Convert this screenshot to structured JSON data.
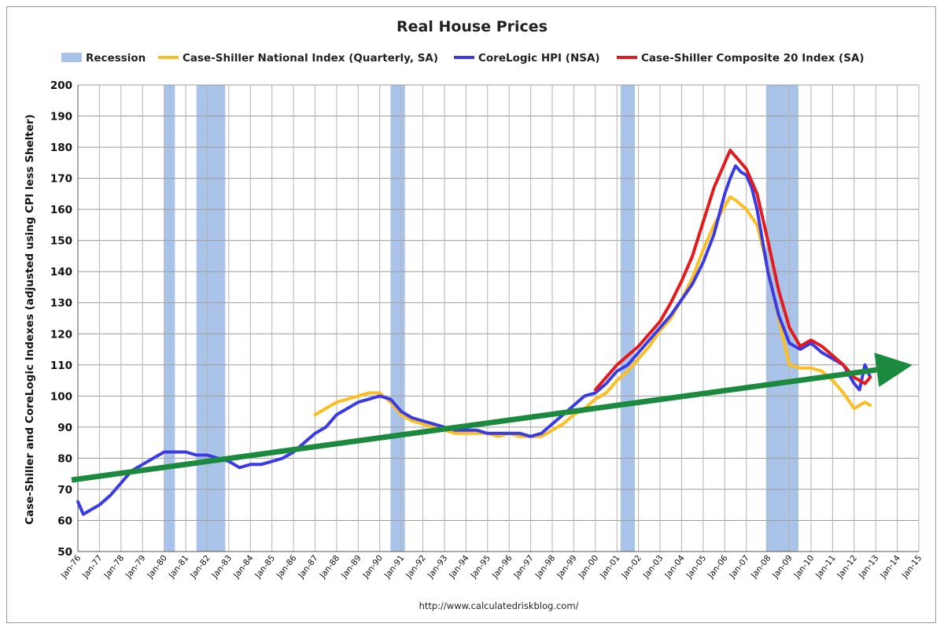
{
  "chart_data": {
    "type": "line",
    "title": "Real House Prices",
    "ylabel": "Case-Shiller and CoreLogic Indexes (adjusted using CPI less Shelter)",
    "xlabel": "",
    "source": "http://www.calculatedriskblog.com/",
    "ylim": [
      50,
      200
    ],
    "yticks": [
      50,
      60,
      70,
      80,
      90,
      100,
      110,
      120,
      130,
      140,
      150,
      160,
      170,
      180,
      190,
      200
    ],
    "xlim": [
      "Jan-76",
      "Jan-15"
    ],
    "xtick_labels": [
      "Jan-76",
      "Jan-77",
      "Jan-78",
      "Jan-79",
      "Jan-80",
      "Jan-81",
      "Jan-82",
      "Jan-83",
      "Jan-84",
      "Jan-85",
      "Jan-86",
      "Jan-87",
      "Jan-88",
      "Jan-89",
      "Jan-90",
      "Jan-91",
      "Jan-92",
      "Jan-93",
      "Jan-94",
      "Jan-95",
      "Jan-96",
      "Jan-97",
      "Jan-98",
      "Jan-99",
      "Jan-00",
      "Jan-01",
      "Jan-02",
      "Jan-03",
      "Jan-04",
      "Jan-05",
      "Jan-06",
      "Jan-07",
      "Jan-08",
      "Jan-09",
      "Jan-10",
      "Jan-11",
      "Jan-12",
      "Jan-13",
      "Jan-14",
      "Jan-15"
    ],
    "grid": true,
    "legend_position": "top",
    "legend": [
      {
        "label": "Recession",
        "color": "#a9c4e8",
        "kind": "box"
      },
      {
        "label": "Case-Shiller National Index (Quarterly, SA)",
        "color": "#fbbf24",
        "kind": "line"
      },
      {
        "label": "CoreLogic HPI (NSA)",
        "color": "#3b3be6",
        "kind": "line"
      },
      {
        "label": "Case-Shiller Composite 20 Index (SA)",
        "color": "#e41a1c",
        "kind": "line"
      }
    ],
    "recessions": [
      {
        "start": "Jan-80",
        "end": "Jul-80"
      },
      {
        "start": "Jul-81",
        "end": "Nov-82"
      },
      {
        "start": "Jul-90",
        "end": "Mar-91"
      },
      {
        "start": "Mar-01",
        "end": "Nov-01"
      },
      {
        "start": "Dec-07",
        "end": "Jun-09"
      }
    ],
    "series": [
      {
        "name": "Case-Shiller National Index (Quarterly, SA)",
        "color": "#fbbf24",
        "x": [
          "Jan-87",
          "Jul-87",
          "Jan-88",
          "Jul-88",
          "Jan-89",
          "Jul-89",
          "Jan-90",
          "Jul-90",
          "Jan-91",
          "Jul-91",
          "Jan-92",
          "Jul-92",
          "Jan-93",
          "Jul-93",
          "Jan-94",
          "Jul-94",
          "Jan-95",
          "Jul-95",
          "Jan-96",
          "Jul-96",
          "Jan-97",
          "Jul-97",
          "Jan-98",
          "Jul-98",
          "Jan-99",
          "Jul-99",
          "Jan-00",
          "Jul-00",
          "Jan-01",
          "Jul-01",
          "Jan-02",
          "Jul-02",
          "Jan-03",
          "Jul-03",
          "Jan-04",
          "Jul-04",
          "Jan-05",
          "Jul-05",
          "Jan-06",
          "Apr-06",
          "Jul-06",
          "Jan-07",
          "Jul-07",
          "Jan-08",
          "Jul-08",
          "Jan-09",
          "Jul-09",
          "Jan-10",
          "Jul-10",
          "Jan-11",
          "Jul-11",
          "Jan-12",
          "Jul-12",
          "Oct-12"
        ],
        "values": [
          94,
          96,
          98,
          99,
          100,
          101,
          101,
          98,
          94,
          92,
          91,
          90,
          89,
          88,
          88,
          88,
          88,
          87,
          88,
          87,
          87,
          87,
          89,
          91,
          94,
          96,
          99,
          101,
          105,
          108,
          112,
          116,
          121,
          125,
          131,
          138,
          147,
          155,
          161,
          164,
          163,
          160,
          155,
          141,
          125,
          110,
          109,
          109,
          108,
          105,
          101,
          96,
          98,
          97
        ]
      },
      {
        "name": "CoreLogic HPI (NSA)",
        "color": "#3b3be6",
        "x": [
          "Jan-76",
          "Apr-76",
          "Jul-76",
          "Jan-77",
          "Jul-77",
          "Jan-78",
          "Jul-78",
          "Jan-79",
          "Jul-79",
          "Jan-80",
          "Jul-80",
          "Jan-81",
          "Jul-81",
          "Jan-82",
          "Jul-82",
          "Jan-83",
          "Jul-83",
          "Jan-84",
          "Jul-84",
          "Jan-85",
          "Jul-85",
          "Jan-86",
          "Jul-86",
          "Jan-87",
          "Jul-87",
          "Jan-88",
          "Jul-88",
          "Jan-89",
          "Jul-89",
          "Jan-90",
          "Jul-90",
          "Jan-91",
          "Jul-91",
          "Jan-92",
          "Jul-92",
          "Jan-93",
          "Jul-93",
          "Jan-94",
          "Jul-94",
          "Jan-95",
          "Jul-95",
          "Jan-96",
          "Jul-96",
          "Jan-97",
          "Jul-97",
          "Jan-98",
          "Jul-98",
          "Jan-99",
          "Jul-99",
          "Jan-00",
          "Jul-00",
          "Jan-01",
          "Jul-01",
          "Jan-02",
          "Jul-02",
          "Jan-03",
          "Jul-03",
          "Jan-04",
          "Jul-04",
          "Jan-05",
          "Jul-05",
          "Jan-06",
          "Apr-06",
          "Jul-06",
          "Oct-06",
          "Jan-07",
          "Apr-07",
          "Jul-07",
          "Jan-08",
          "Jul-08",
          "Jan-09",
          "Jul-09",
          "Jan-10",
          "Jul-10",
          "Jan-11",
          "Jul-11",
          "Jan-12",
          "Apr-12",
          "Jul-12",
          "Oct-12"
        ],
        "values": [
          66,
          62,
          63,
          65,
          68,
          72,
          76,
          78,
          80,
          82,
          82,
          82,
          81,
          81,
          80,
          79,
          77,
          78,
          78,
          79,
          80,
          82,
          85,
          88,
          90,
          94,
          96,
          98,
          99,
          100,
          99,
          95,
          93,
          92,
          91,
          90,
          89,
          89,
          89,
          88,
          88,
          88,
          88,
          87,
          88,
          91,
          94,
          97,
          100,
          101,
          104,
          108,
          110,
          114,
          118,
          122,
          126,
          131,
          136,
          143,
          152,
          165,
          170,
          174,
          172,
          171,
          167,
          160,
          140,
          126,
          117,
          115,
          117,
          114,
          112,
          110,
          104,
          102,
          110,
          106
        ]
      },
      {
        "name": "Case-Shiller Composite 20 Index (SA)",
        "color": "#e41a1c",
        "x": [
          "Jan-00",
          "Jul-00",
          "Jan-01",
          "Jul-01",
          "Jan-02",
          "Jul-02",
          "Jan-03",
          "Jul-03",
          "Jan-04",
          "Jul-04",
          "Jan-05",
          "Jul-05",
          "Jan-06",
          "Apr-06",
          "Jul-06",
          "Oct-06",
          "Jan-07",
          "Jul-07",
          "Jan-08",
          "Jul-08",
          "Jan-09",
          "Jul-09",
          "Jan-10",
          "Jul-10",
          "Jan-11",
          "Jul-11",
          "Jan-12",
          "Jul-12",
          "Oct-12"
        ],
        "values": [
          102,
          106,
          110,
          113,
          116,
          120,
          124,
          130,
          137,
          145,
          156,
          167,
          175,
          179,
          177,
          175,
          173,
          165,
          150,
          134,
          122,
          116,
          118,
          116,
          113,
          110,
          106,
          104,
          106
        ]
      }
    ],
    "annotations": [
      {
        "type": "arrow",
        "color": "#1b8a3f",
        "x": [
          "Jan-76",
          "Jan-15"
        ],
        "y": [
          73,
          110
        ]
      }
    ]
  }
}
